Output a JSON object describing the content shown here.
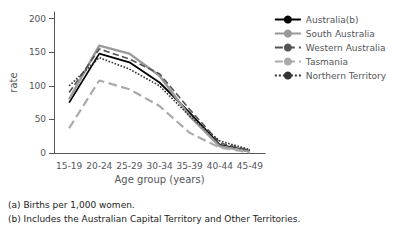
{
  "chart_data": {
    "type": "line",
    "xlabel": "Age group (years)",
    "ylabel": "rate",
    "categories": [
      "15-19",
      "20-24",
      "25-29",
      "30-34",
      "35-39",
      "40-44",
      "45-49"
    ],
    "series": [
      {
        "name": "Australia(b)",
        "color": "#000000",
        "line_style": "solid",
        "values": [
          75,
          148,
          135,
          105,
          60,
          12,
          3
        ]
      },
      {
        "name": "South Australia",
        "color": "#999999",
        "line_style": "solid",
        "values": [
          80,
          160,
          148,
          115,
          55,
          10,
          2
        ]
      },
      {
        "name": "Western Australia",
        "color": "#555555",
        "line_style": "dashed",
        "values": [
          90,
          155,
          140,
          118,
          65,
          15,
          4
        ]
      },
      {
        "name": "Tasmania",
        "color": "#aaaaaa",
        "line_style": "dashed",
        "values": [
          37,
          108,
          95,
          70,
          30,
          8,
          1
        ]
      },
      {
        "name": "Northern Territory",
        "color": "#333333",
        "line_style": "dotted",
        "values": [
          100,
          142,
          125,
          100,
          55,
          18,
          5
        ]
      }
    ],
    "ylim": [
      0,
      210
    ],
    "yticks": [
      0,
      50,
      100,
      150,
      200
    ],
    "grid": false,
    "legend": "upper right",
    "annotations": [
      "(a) Births per 1,000 women.",
      "(b) Includes the Australian Capital Territory and Other Territories."
    ]
  }
}
